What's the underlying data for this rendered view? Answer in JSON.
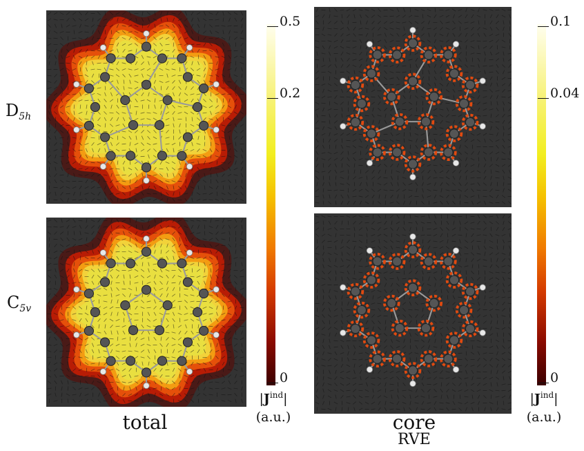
{
  "rows": [
    {
      "label_main": "D",
      "label_sub": "5h"
    },
    {
      "label_main": "C",
      "label_sub": "5v"
    }
  ],
  "columns": {
    "left_label": "total",
    "right_label": "core",
    "right_sublabel": "RVE"
  },
  "colorbars": {
    "left": {
      "max": "0.5",
      "mid": "0.2",
      "min": "0",
      "unit_prefix": "|",
      "unit_bold": "J",
      "unit_sup": "ind",
      "unit_suffix": "|",
      "unit_au": "(a.u.)"
    },
    "right": {
      "max": "0.1",
      "mid": "0.04",
      "min": "0",
      "unit_prefix": "|",
      "unit_bold": "J",
      "unit_sup": "ind",
      "unit_suffix": "|",
      "unit_au": "(a.u.)"
    }
  }
}
